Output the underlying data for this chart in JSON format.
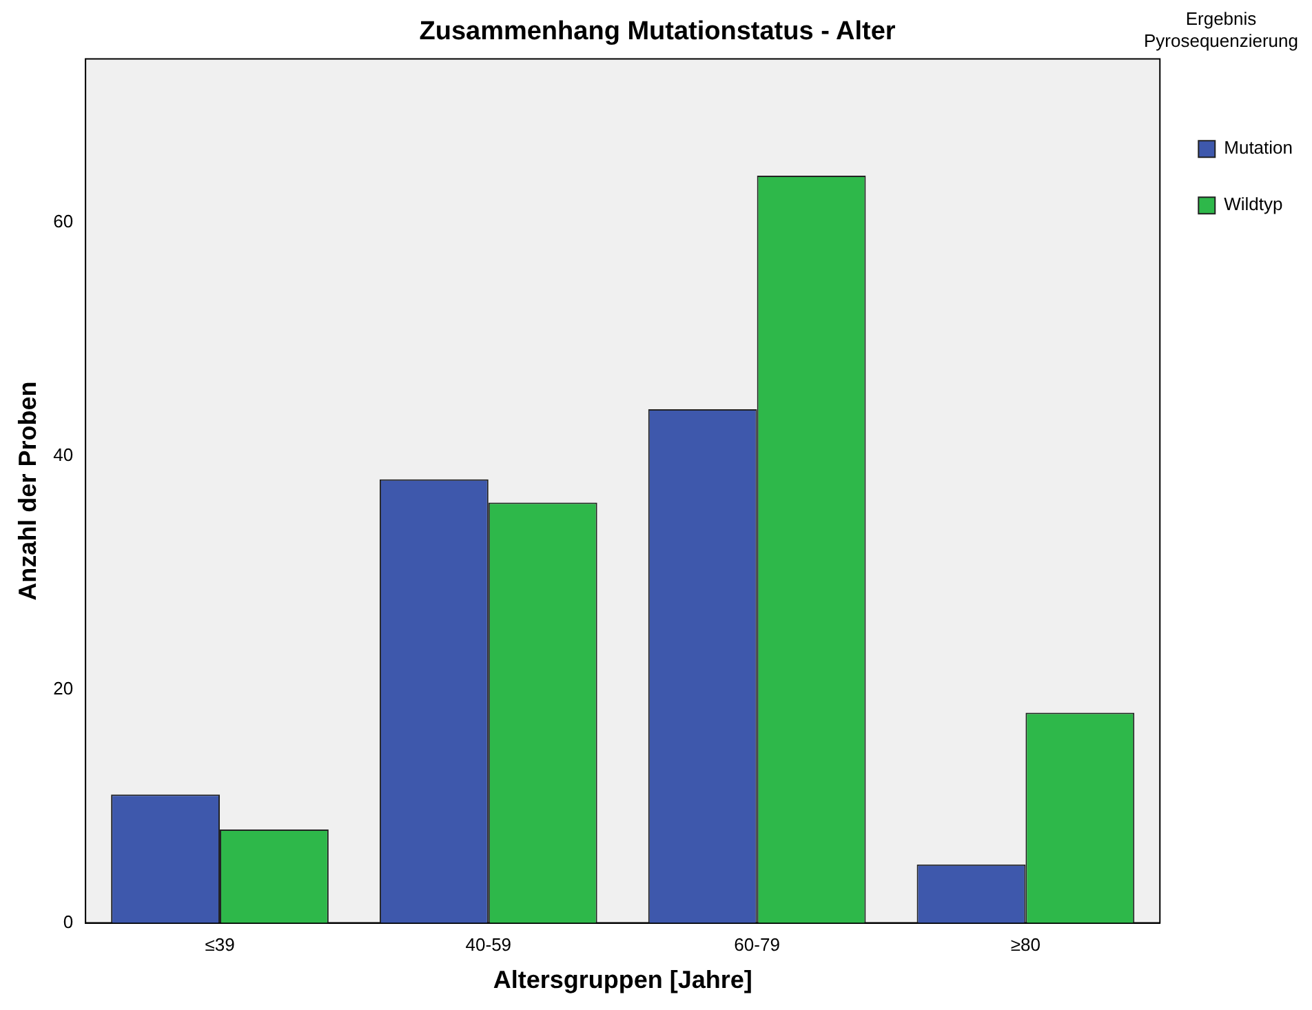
{
  "chart_data": {
    "type": "bar",
    "title": "Zusammenhang Mutationstatus - Alter",
    "xlabel": "Altersgruppen [Jahre]",
    "ylabel": "Anzahl der Proben",
    "legend_title": "Ergebnis Pyrosequenzierung",
    "categories": [
      "≤39",
      "40-59",
      "60-79",
      "≥80"
    ],
    "series": [
      {
        "name": "Mutation",
        "color": "#3e58ac",
        "values": [
          11,
          38,
          44,
          5
        ]
      },
      {
        "name": "Wildtyp",
        "color": "#2eb84a",
        "values": [
          8,
          36,
          64,
          18
        ]
      }
    ],
    "ylim": [
      0,
      74
    ],
    "yticks": [
      0,
      20,
      40,
      60
    ],
    "grid": false,
    "legend": "top right"
  }
}
